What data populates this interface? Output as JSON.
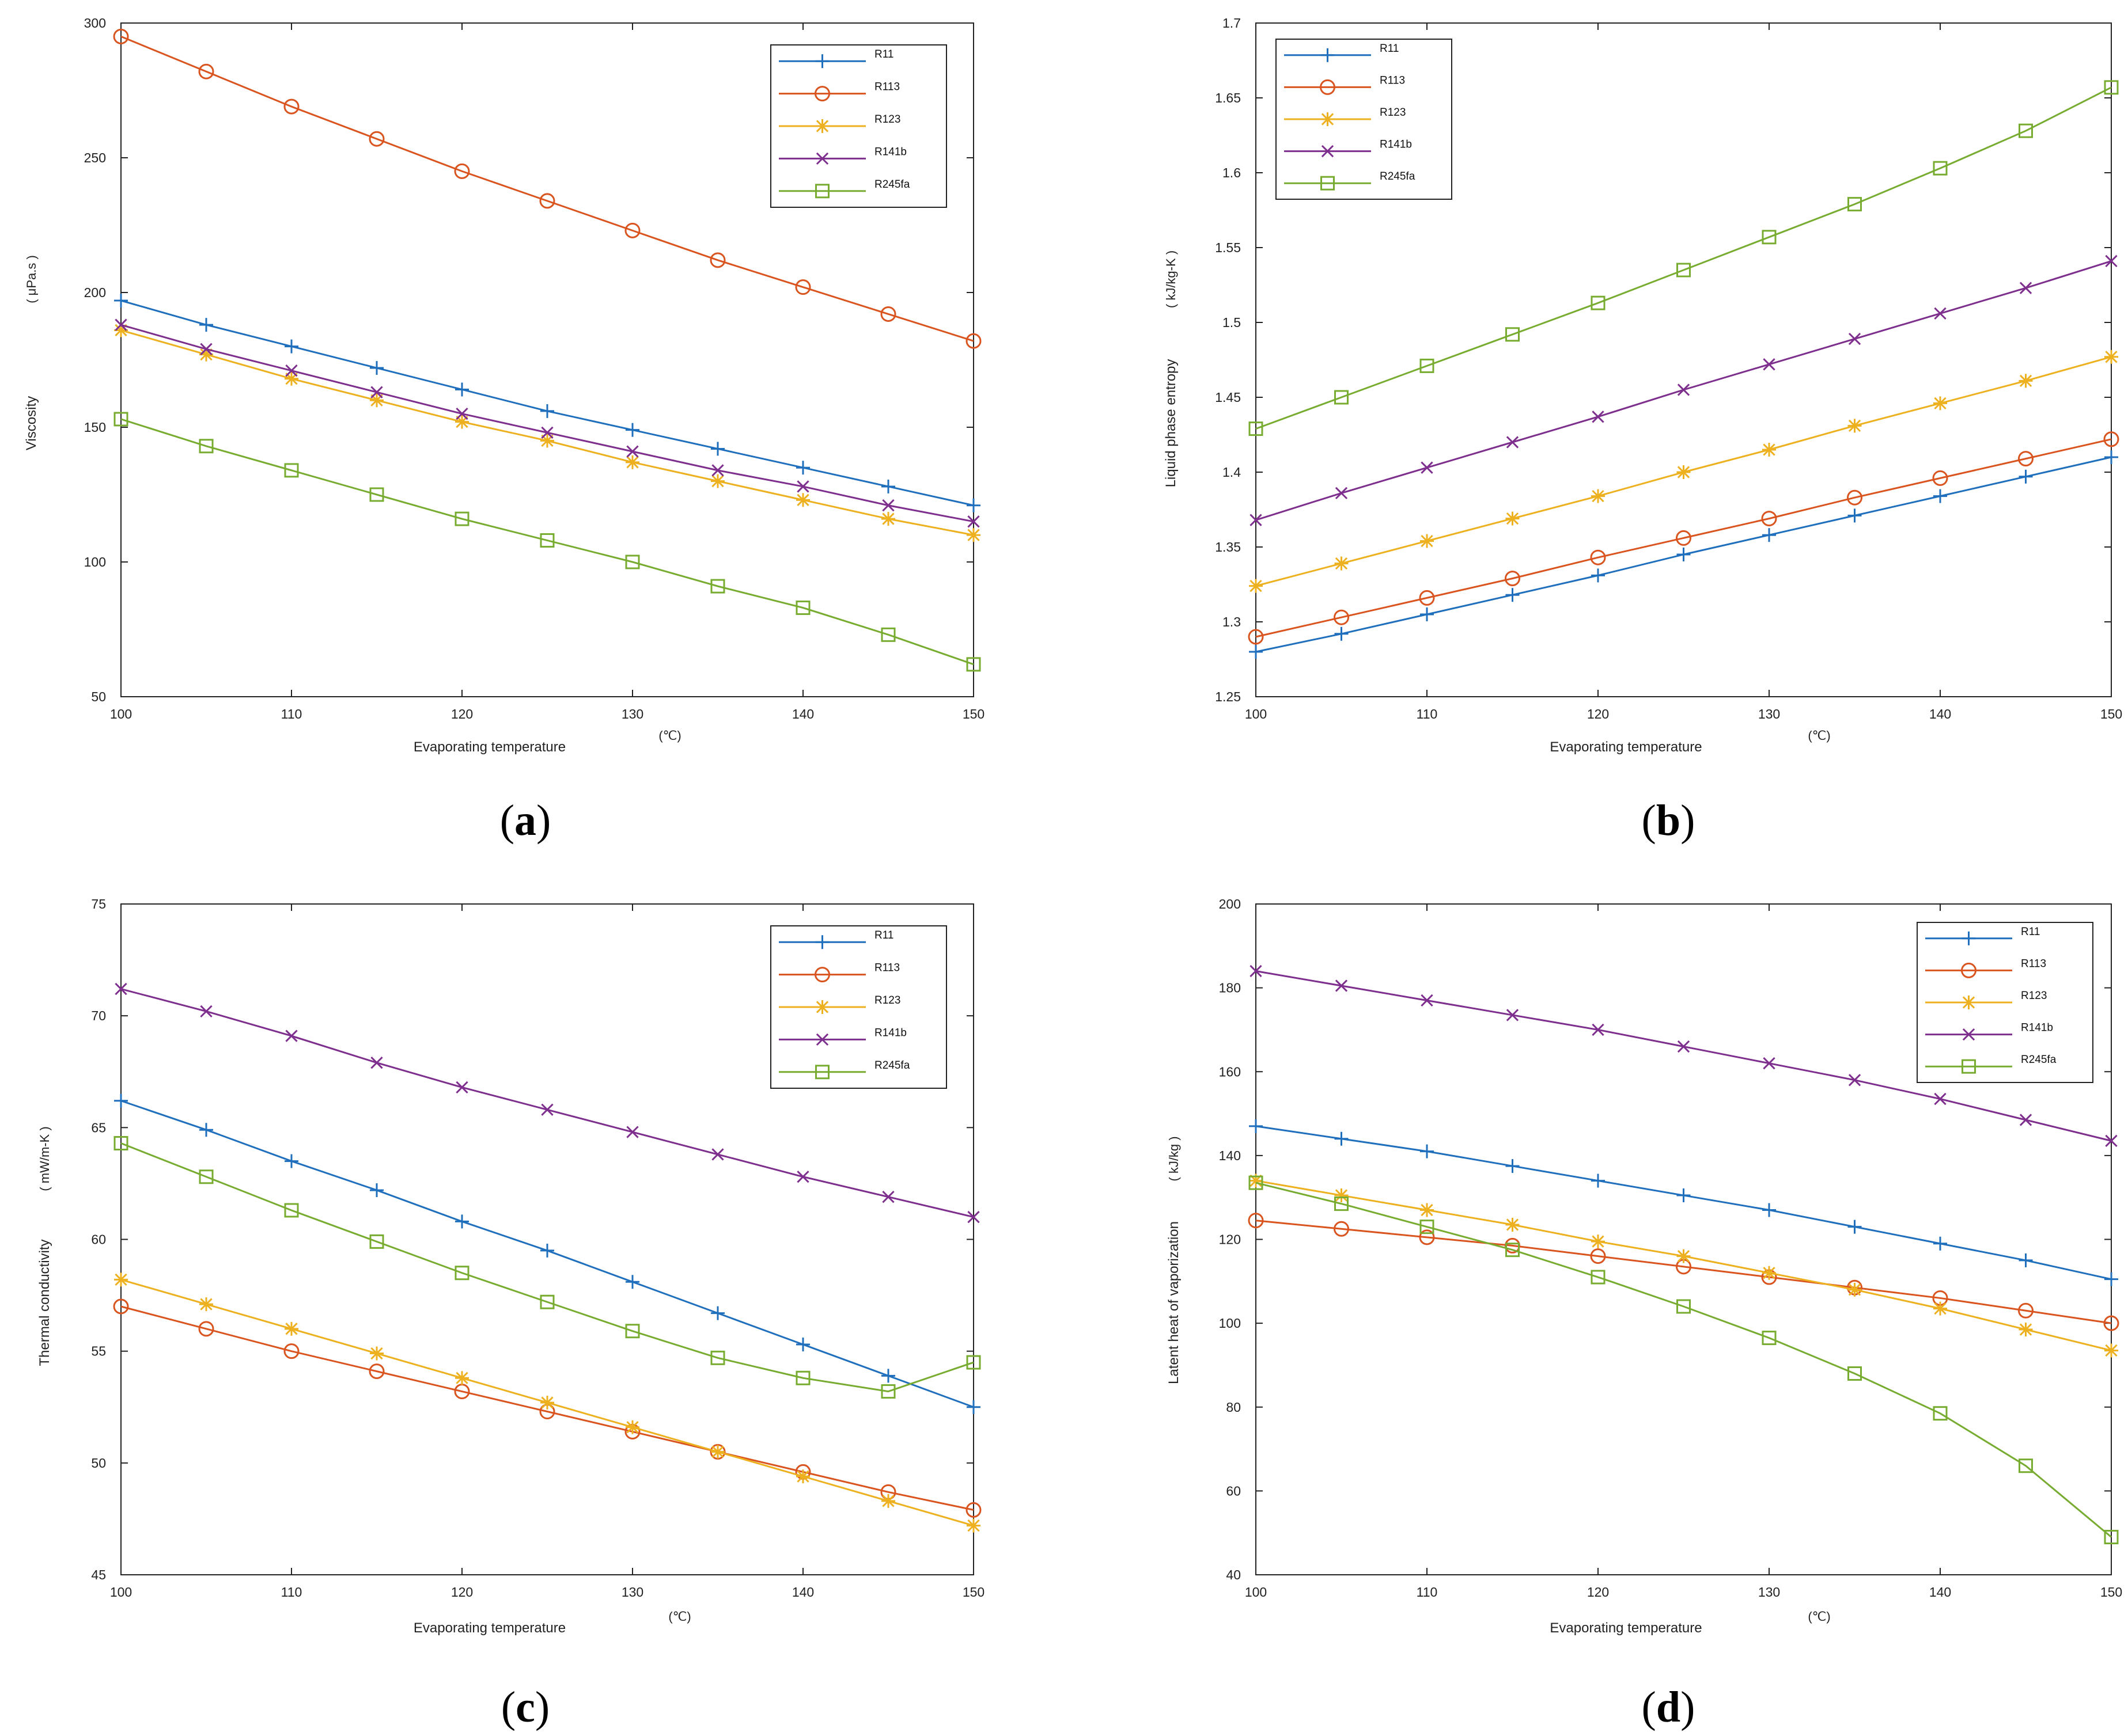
{
  "chart_data": [
    {
      "type": "line",
      "panel_label": "(a)",
      "panel_letter": "a",
      "xlabel": "Evaporating temperature",
      "xunit": "(℃)",
      "ylabel": "Viscosity",
      "yunit": "μPa.s",
      "xlim": [
        100,
        150
      ],
      "ylim": [
        50,
        300
      ],
      "xticks": [
        "100",
        "110",
        "120",
        "130",
        "140",
        "150"
      ],
      "yticks": [
        "50",
        "100",
        "150",
        "200",
        "250",
        "300"
      ],
      "legend_position": "top-right",
      "x": [
        100,
        105,
        110,
        115,
        120,
        125,
        130,
        135,
        140,
        145,
        150
      ],
      "series": [
        {
          "name": "R11",
          "color": "#1f6fbd",
          "marker": "plus",
          "values": [
            197,
            188,
            180,
            172,
            164,
            156,
            149,
            142,
            135,
            128,
            121
          ]
        },
        {
          "name": "R113",
          "color": "#d9541e",
          "marker": "circle",
          "values": [
            295,
            282,
            269,
            257,
            245,
            234,
            223,
            212,
            202,
            192,
            182
          ]
        },
        {
          "name": "R123",
          "color": "#edb120",
          "marker": "star",
          "values": [
            186,
            177,
            168,
            160,
            152,
            145,
            137,
            130,
            123,
            116,
            110
          ]
        },
        {
          "name": "R141b",
          "color": "#7e2f8e",
          "marker": "x",
          "values": [
            188,
            179,
            171,
            163,
            155,
            148,
            141,
            134,
            128,
            121,
            115
          ]
        },
        {
          "name": "R245fa",
          "color": "#77ac30",
          "marker": "square",
          "values": [
            153,
            143,
            134,
            125,
            116,
            108,
            100,
            91,
            83,
            73,
            62
          ]
        }
      ]
    },
    {
      "type": "line",
      "panel_label": "(b)",
      "panel_letter": "b",
      "xlabel": "Evaporating temperature",
      "xunit": "(℃)",
      "ylabel": "Liquid phase entropy",
      "yunit": "kJ/kg-K",
      "xlim": [
        100,
        150
      ],
      "ylim": [
        1.25,
        1.7
      ],
      "xticks": [
        "100",
        "110",
        "120",
        "130",
        "140",
        "150"
      ],
      "yticks": [
        "1.25",
        "1.3",
        "1.35",
        "1.4",
        "1.45",
        "1.5",
        "1.55",
        "1.6",
        "1.65",
        "1.7"
      ],
      "legend_position": "top-left",
      "x": [
        100,
        105,
        110,
        115,
        120,
        125,
        130,
        135,
        140,
        145,
        150
      ],
      "series": [
        {
          "name": "R11",
          "color": "#1f6fbd",
          "marker": "plus",
          "values": [
            1.28,
            1.292,
            1.305,
            1.318,
            1.331,
            1.345,
            1.358,
            1.371,
            1.384,
            1.397,
            1.41
          ]
        },
        {
          "name": "R113",
          "color": "#d9541e",
          "marker": "circle",
          "values": [
            1.29,
            1.303,
            1.316,
            1.329,
            1.343,
            1.356,
            1.369,
            1.383,
            1.396,
            1.409,
            1.422
          ]
        },
        {
          "name": "R123",
          "color": "#edb120",
          "marker": "star",
          "values": [
            1.324,
            1.339,
            1.354,
            1.369,
            1.384,
            1.4,
            1.415,
            1.431,
            1.446,
            1.461,
            1.477
          ]
        },
        {
          "name": "R141b",
          "color": "#7e2f8e",
          "marker": "x",
          "values": [
            1.368,
            1.386,
            1.403,
            1.42,
            1.437,
            1.455,
            1.472,
            1.489,
            1.506,
            1.523,
            1.541
          ]
        },
        {
          "name": "R245fa",
          "color": "#77ac30",
          "marker": "square",
          "values": [
            1.429,
            1.45,
            1.471,
            1.492,
            1.513,
            1.535,
            1.557,
            1.579,
            1.603,
            1.628,
            1.657
          ]
        }
      ]
    },
    {
      "type": "line",
      "panel_label": "(c)",
      "panel_letter": "c",
      "xlabel": "Evaporating temperature",
      "xunit": "(℃)",
      "ylabel": "Thermal conductivity",
      "yunit": "mW/m-K",
      "xlim": [
        100,
        150
      ],
      "ylim": [
        45,
        75
      ],
      "xticks": [
        "100",
        "110",
        "120",
        "130",
        "140",
        "150"
      ],
      "yticks": [
        "45",
        "50",
        "55",
        "60",
        "65",
        "70",
        "75"
      ],
      "legend_position": "top-right",
      "x": [
        100,
        105,
        110,
        115,
        120,
        125,
        130,
        135,
        140,
        145,
        150
      ],
      "series": [
        {
          "name": "R11",
          "color": "#1f6fbd",
          "marker": "plus",
          "values": [
            66.2,
            64.9,
            63.5,
            62.2,
            60.8,
            59.5,
            58.1,
            56.7,
            55.3,
            53.9,
            52.5
          ]
        },
        {
          "name": "R113",
          "color": "#d9541e",
          "marker": "circle",
          "values": [
            57.0,
            56.0,
            55.0,
            54.1,
            53.2,
            52.3,
            51.4,
            50.5,
            49.6,
            48.7,
            47.9
          ]
        },
        {
          "name": "R123",
          "color": "#edb120",
          "marker": "star",
          "values": [
            58.2,
            57.1,
            56.0,
            54.9,
            53.8,
            52.7,
            51.6,
            50.5,
            49.4,
            48.3,
            47.2
          ]
        },
        {
          "name": "R141b",
          "color": "#7e2f8e",
          "marker": "x",
          "values": [
            71.2,
            70.2,
            69.1,
            67.9,
            66.8,
            65.8,
            64.8,
            63.8,
            62.8,
            61.9,
            61.0
          ]
        },
        {
          "name": "R245fa",
          "color": "#77ac30",
          "marker": "square",
          "values": [
            64.3,
            62.8,
            61.3,
            59.9,
            58.5,
            57.2,
            55.9,
            54.7,
            53.8,
            53.2,
            54.5
          ]
        }
      ]
    },
    {
      "type": "line",
      "panel_label": "(d)",
      "panel_letter": "d",
      "xlabel": "Evaporating temperature",
      "xunit": "(℃)",
      "ylabel": "Latent heat of vaporization",
      "yunit": "kJ/kg",
      "xlim": [
        100,
        150
      ],
      "ylim": [
        40,
        200
      ],
      "xticks": [
        "100",
        "110",
        "120",
        "130",
        "140",
        "150"
      ],
      "yticks": [
        "40",
        "60",
        "80",
        "100",
        "120",
        "140",
        "160",
        "180",
        "200"
      ],
      "legend_position": "top-right",
      "x": [
        100,
        105,
        110,
        115,
        120,
        125,
        130,
        135,
        140,
        145,
        150
      ],
      "series": [
        {
          "name": "R11",
          "color": "#1f6fbd",
          "marker": "plus",
          "values": [
            147,
            144,
            141,
            137.5,
            134,
            130.5,
            127,
            123,
            119,
            115,
            110.5
          ]
        },
        {
          "name": "R113",
          "color": "#d9541e",
          "marker": "circle",
          "values": [
            124.5,
            122.5,
            120.5,
            118.5,
            116,
            113.5,
            111,
            108.5,
            106,
            103,
            100
          ]
        },
        {
          "name": "R123",
          "color": "#edb120",
          "marker": "star",
          "values": [
            134,
            130.5,
            127,
            123.5,
            119.5,
            116,
            112,
            108,
            103.5,
            98.5,
            93.5
          ]
        },
        {
          "name": "R141b",
          "color": "#7e2f8e",
          "marker": "x",
          "values": [
            184,
            180.5,
            177,
            173.5,
            170,
            166,
            162,
            158,
            153.5,
            148.5,
            143.5
          ]
        },
        {
          "name": "R245fa",
          "color": "#77ac30",
          "marker": "square",
          "values": [
            133.5,
            128.5,
            123,
            117.5,
            111,
            104,
            96.5,
            88,
            78.5,
            66,
            49
          ]
        }
      ]
    }
  ]
}
